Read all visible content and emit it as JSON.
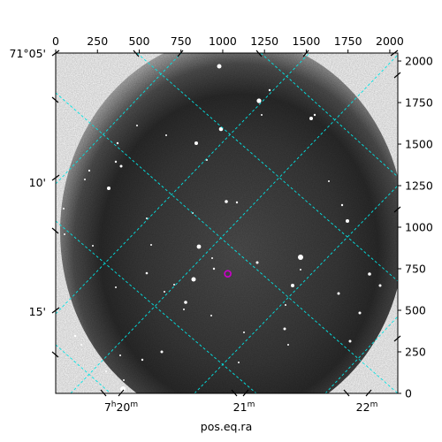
{
  "chart_data": {
    "type": "image",
    "title": "",
    "xlabel": "pos.eq.ra",
    "ylabel": "",
    "pixel_axes": {
      "x": {
        "range": [
          0,
          2048
        ],
        "ticks": [
          0,
          250,
          500,
          750,
          1000,
          1250,
          1500,
          1750,
          2000
        ],
        "position": "top"
      },
      "y": {
        "range": [
          0,
          2048
        ],
        "ticks": [
          0,
          250,
          500,
          750,
          1000,
          1250,
          1500,
          1750,
          2000
        ],
        "position": "right"
      }
    },
    "world_axes": {
      "ra": {
        "label": "pos.eq.ra",
        "ticks": [
          {
            "text": "7h20m",
            "main": "7",
            "sup1": "h",
            "mid": "20",
            "sup2": "m"
          },
          {
            "text": "21m",
            "main": "21",
            "sup1": "",
            "mid": "",
            "sup2": "m"
          },
          {
            "text": "22m",
            "main": "22",
            "sup1": "",
            "mid": "",
            "sup2": "m"
          }
        ],
        "position": "bottom"
      },
      "dec": {
        "ticks": [
          "71°05'",
          "10'",
          "15'"
        ],
        "position": "left"
      }
    },
    "grid": true,
    "grid_color": "#00e5e5",
    "colormap": "gray",
    "marker": {
      "shape": "circle",
      "color": "#cc00cc",
      "x": 1030,
      "y": 720
    }
  }
}
